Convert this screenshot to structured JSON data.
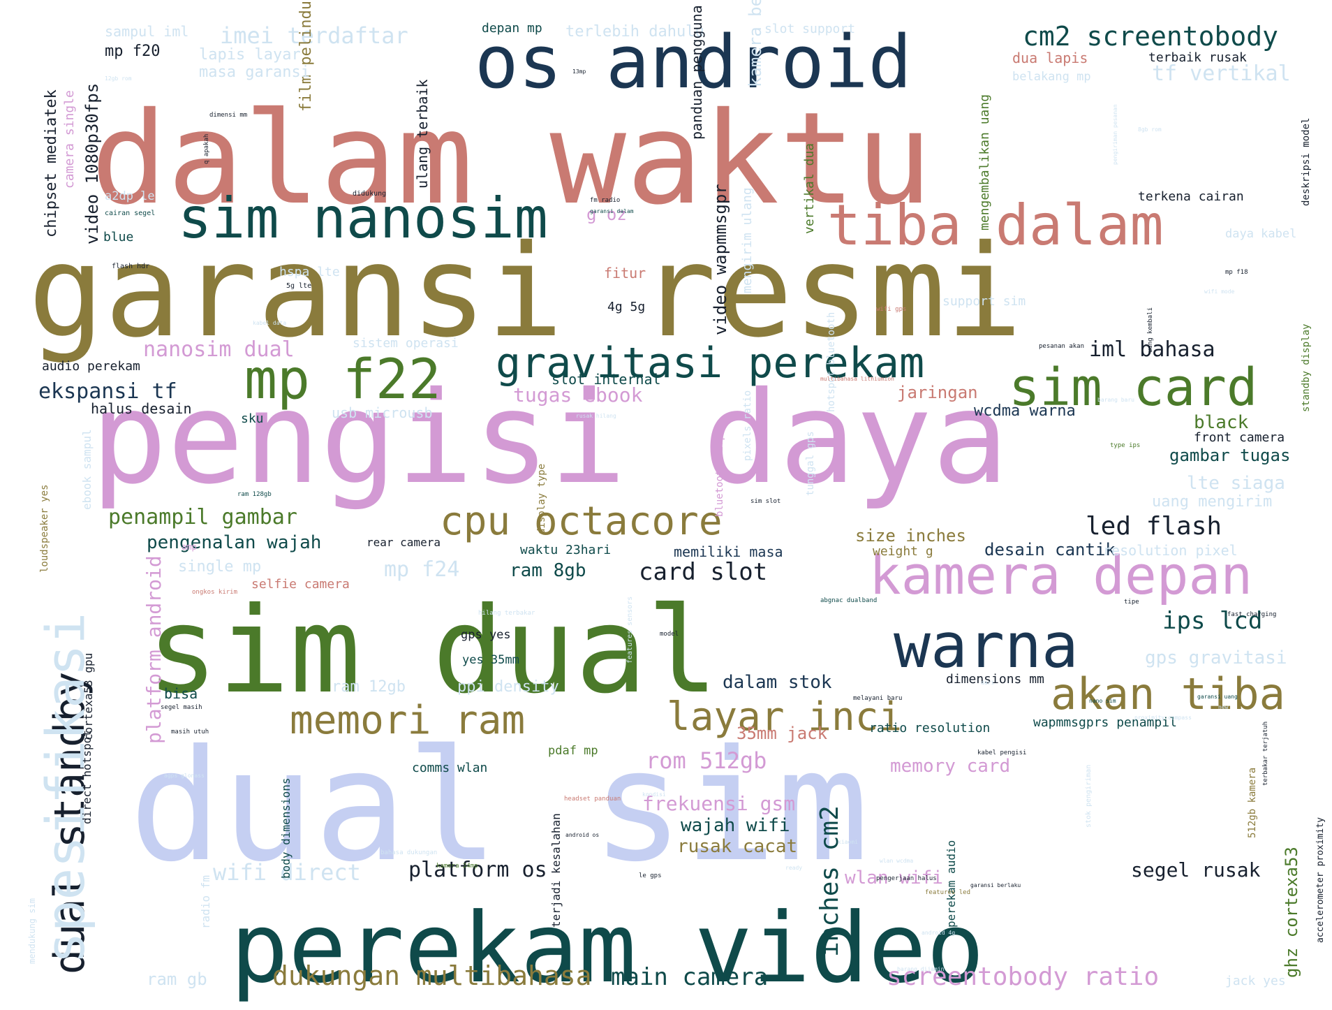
{
  "palette": {
    "rose": "#c97a72",
    "olive": "#8a7b3c",
    "orchid": "#d39ad4",
    "periwinkle": "#c5cff2",
    "deep_teal": "#0f4a4a",
    "navy": "#1b3652",
    "green": "#4b7a2a",
    "ice": "#cfe3f1",
    "dark": "#17202e"
  },
  "words": [
    {
      "text": "dalam waktu",
      "color": "rose"
    },
    {
      "text": "garansi resmi",
      "color": "olive"
    },
    {
      "text": "pengisi daya",
      "color": "orchid"
    },
    {
      "text": "dual sim",
      "color": "periwinkle"
    },
    {
      "text": "sim dual",
      "color": "green"
    },
    {
      "text": "perekam video",
      "color": "deep_teal"
    },
    {
      "text": "os android",
      "color": "navy"
    },
    {
      "text": "sim nanosim",
      "color": "deep_teal"
    },
    {
      "text": "tiba dalam",
      "color": "rose"
    },
    {
      "text": "mp f22",
      "color": "green"
    },
    {
      "text": "gravitasi perekam",
      "color": "deep_teal"
    },
    {
      "text": "sim card",
      "color": "green"
    },
    {
      "text": "warna",
      "color": "navy"
    },
    {
      "text": "kamera depan",
      "color": "orchid"
    },
    {
      "text": "akan tiba",
      "color": "olive"
    },
    {
      "text": "layar inci",
      "color": "olive"
    },
    {
      "text": "memori ram",
      "color": "olive"
    },
    {
      "text": "cpu octacore",
      "color": "olive"
    },
    {
      "text": "dual standby",
      "color": "dark"
    },
    {
      "text": "spesifikasi",
      "color": "ice"
    },
    {
      "text": "cm2 screentobody",
      "color": "deep_teal"
    },
    {
      "text": "imei terdaftar",
      "color": "ice"
    },
    {
      "text": "tf vertikal",
      "color": "ice"
    },
    {
      "text": "dukungan multibahasa",
      "color": "olive"
    },
    {
      "text": "main camera",
      "color": "deep_teal"
    },
    {
      "text": "screentobody ratio",
      "color": "orchid"
    },
    {
      "text": "platform os",
      "color": "dark"
    },
    {
      "text": "wifi direct",
      "color": "ice"
    },
    {
      "text": "segel rusak",
      "color": "dark"
    },
    {
      "text": "wlan wifi",
      "color": "orchid"
    },
    {
      "text": "iml bahasa",
      "color": "dark"
    },
    {
      "text": "led flash",
      "color": "dark"
    },
    {
      "text": "ips lcd",
      "color": "deep_teal"
    },
    {
      "text": "card slot",
      "color": "dark"
    },
    {
      "text": "penampil gambar",
      "color": "green"
    },
    {
      "text": "ekspansi tf",
      "color": "navy"
    },
    {
      "text": "nanosim dual",
      "color": "orchid"
    },
    {
      "text": "pengenalan wajah",
      "color": "deep_teal"
    },
    {
      "text": "mp f24",
      "color": "ice"
    },
    {
      "text": "rom 512gb",
      "color": "orchid"
    },
    {
      "text": "frekuensi gsm",
      "color": "orchid"
    },
    {
      "text": "wajah wifi",
      "color": "deep_teal"
    },
    {
      "text": "rusak cacat",
      "color": "olive"
    },
    {
      "text": "dalam stok",
      "color": "navy"
    },
    {
      "text": "memory card",
      "color": "orchid"
    },
    {
      "text": "35mm jack",
      "color": "rose"
    },
    {
      "text": "ram 8gb",
      "color": "deep_teal"
    },
    {
      "text": "size inches",
      "color": "olive"
    },
    {
      "text": "desain cantik",
      "color": "navy"
    },
    {
      "text": "gps gravitasi",
      "color": "ice"
    },
    {
      "text": "black",
      "color": "green"
    },
    {
      "text": "gambar tugas",
      "color": "deep_teal"
    },
    {
      "text": "lte siaga",
      "color": "ice"
    },
    {
      "text": "uang mengirim",
      "color": "ice"
    },
    {
      "text": "jaringan",
      "color": "rose"
    },
    {
      "text": "wcdma warna",
      "color": "navy"
    },
    {
      "text": "tugas ebook",
      "color": "orchid"
    },
    {
      "text": "slot internal",
      "color": "deep_teal"
    },
    {
      "text": "film pelindung",
      "color": "olive"
    },
    {
      "text": "video 1080p30fps",
      "color": "dark"
    },
    {
      "text": "chipset mediatek",
      "color": "dark"
    },
    {
      "text": "mp f20",
      "color": "dark"
    },
    {
      "text": "lapis layar",
      "color": "ice"
    },
    {
      "text": "masa garansi",
      "color": "ice"
    },
    {
      "text": "sampul iml",
      "color": "ice"
    },
    {
      "text": "depan mp",
      "color": "deep_teal"
    },
    {
      "text": "terlebih dahulu",
      "color": "ice"
    },
    {
      "text": "slot support",
      "color": "ice"
    },
    {
      "text": "dua lapis",
      "color": "rose"
    },
    {
      "text": "terbaik rusak",
      "color": "dark"
    },
    {
      "text": "belakang mp",
      "color": "ice"
    },
    {
      "text": "terkena cairan",
      "color": "dark"
    },
    {
      "text": "daya kabel",
      "color": "ice"
    },
    {
      "text": "support sim",
      "color": "ice"
    },
    {
      "text": "g oz",
      "color": "orchid"
    },
    {
      "text": "fitur",
      "color": "rose"
    },
    {
      "text": "4g 5g",
      "color": "dark"
    },
    {
      "text": "hspa lte",
      "color": "ice"
    },
    {
      "text": "blue",
      "color": "deep_teal"
    },
    {
      "text": "a2dp le",
      "color": "ice"
    },
    {
      "text": "audio perekam",
      "color": "dark"
    },
    {
      "text": "halus desain",
      "color": "dark"
    },
    {
      "text": "sku",
      "color": "deep_teal"
    },
    {
      "text": "usb microusb",
      "color": "ice"
    },
    {
      "text": "sistem operasi",
      "color": "ice"
    },
    {
      "text": "waktu 23hari",
      "color": "deep_teal"
    },
    {
      "text": "memiliki masa",
      "color": "navy"
    },
    {
      "text": "weight g",
      "color": "olive"
    },
    {
      "text": "rear camera",
      "color": "dark"
    },
    {
      "text": "single mp",
      "color": "ice"
    },
    {
      "text": "selfie camera",
      "color": "rose"
    },
    {
      "text": "gps yes",
      "color": "dark"
    },
    {
      "text": "yes 35mm",
      "color": "deep_teal"
    },
    {
      "text": "ram 12gb",
      "color": "ice"
    },
    {
      "text": "ppi density",
      "color": "ice"
    },
    {
      "text": "bisa",
      "color": "deep_teal"
    },
    {
      "text": "pdaf mp",
      "color": "green"
    },
    {
      "text": "comms wlan",
      "color": "deep_teal"
    },
    {
      "text": "dimensions mm",
      "color": "dark"
    },
    {
      "text": "ratio resolution",
      "color": "deep_teal"
    },
    {
      "text": "wapmmsgprs penampil",
      "color": "deep_teal"
    },
    {
      "text": "front camera",
      "color": "dark"
    },
    {
      "text": "resolution pixel",
      "color": "ice"
    },
    {
      "text": "ram gb",
      "color": "ice"
    },
    {
      "text": "jack yes",
      "color": "ice"
    },
    {
      "text": "platform android",
      "color": "orchid"
    },
    {
      "text": "inches cm2",
      "color": "deep_teal"
    },
    {
      "text": "ghz cortexa53",
      "color": "green"
    },
    {
      "text": "video wapmmsgpr",
      "color": "dark"
    },
    {
      "text": "panduan pengguna",
      "color": "dark"
    },
    {
      "text": "kamera belakang",
      "color": "ice"
    },
    {
      "text": "vertikal dua",
      "color": "green"
    },
    {
      "text": "mengembalikan uang",
      "color": "green"
    },
    {
      "text": "ulang terbaik",
      "color": "dark"
    },
    {
      "text": "camera single",
      "color": "orchid"
    },
    {
      "text": "direct hotspot",
      "color": "dark"
    },
    {
      "text": "cortexa53 gpu",
      "color": "dark"
    },
    {
      "text": "perekam audio",
      "color": "deep_teal"
    },
    {
      "text": "terjadi kesalahan",
      "color": "dark"
    },
    {
      "text": "body dimensions",
      "color": "deep_teal"
    },
    {
      "text": "radio fm",
      "color": "ice"
    },
    {
      "text": "loudspeaker yes",
      "color": "olive"
    },
    {
      "text": "ebook sampul",
      "color": "ice"
    },
    {
      "text": "mengirim ulang",
      "color": "ice"
    },
    {
      "text": "deskripsi model",
      "color": "dark"
    },
    {
      "text": "standby display",
      "color": "green"
    },
    {
      "text": "accelerometer proximity",
      "color": "dark"
    },
    {
      "text": "512gb kamera",
      "color": "olive"
    },
    {
      "text": "display type",
      "color": "olive"
    },
    {
      "text": "bluetooth a2dp",
      "color": "orchid"
    },
    {
      "text": "tunggal gps",
      "color": "ice"
    },
    {
      "text": "hotspot bluetooth",
      "color": "ice"
    },
    {
      "text": "pixels ratio",
      "color": "ice"
    },
    {
      "text": "mendukung sim",
      "color": "ice"
    },
    {
      "text": "features sensors",
      "color": "ice"
    },
    {
      "text": "stok pengiriman",
      "color": "ice"
    },
    {
      "text": "q apakah",
      "color": "dark"
    },
    {
      "text": "terbakar terjatuh",
      "color": "dark"
    },
    {
      "text": "uang kembali",
      "color": "dark"
    },
    {
      "text": "pengiriman pesanan",
      "color": "ice"
    },
    {
      "text": "dimensi mm",
      "color": "dark"
    },
    {
      "text": "12gb rom",
      "color": "ice"
    },
    {
      "text": "13mp",
      "color": "dark"
    },
    {
      "text": "didukung",
      "color": "dark"
    },
    {
      "text": "cairan segel",
      "color": "deep_teal"
    },
    {
      "text": "fm radio",
      "color": "dark"
    },
    {
      "text": "garansi dalam",
      "color": "deep_teal"
    },
    {
      "text": "flash hdr",
      "color": "dark"
    },
    {
      "text": "5g lte",
      "color": "dark"
    },
    {
      "text": "kabel data",
      "color": "ice"
    },
    {
      "text": "8gb rom",
      "color": "ice"
    },
    {
      "text": "wifi mode",
      "color": "ice"
    },
    {
      "text": "mp f18",
      "color": "dark"
    },
    {
      "text": "wifi gps",
      "color": "rose"
    },
    {
      "text": "pesanan akan",
      "color": "dark"
    },
    {
      "text": "multibahasa lithiumion",
      "color": "rose"
    },
    {
      "text": "rusak hilang",
      "color": "ice"
    },
    {
      "text": "barang baru",
      "color": "ice"
    },
    {
      "text": "type ips",
      "color": "green"
    },
    {
      "text": "ram 128gb",
      "color": "deep_teal"
    },
    {
      "text": "sim slot",
      "color": "dark"
    },
    {
      "text": "amp",
      "color": "orchid"
    },
    {
      "text": "ongkos kirim",
      "color": "rose"
    },
    {
      "text": "hilang terbakar",
      "color": "ice"
    },
    {
      "text": "abgnac dualband",
      "color": "deep_teal"
    },
    {
      "text": "model",
      "color": "dark"
    },
    {
      "text": "tipe",
      "color": "dark"
    },
    {
      "text": "fast charging",
      "color": "dark"
    },
    {
      "text": "kabel pengisi",
      "color": "dark"
    },
    {
      "text": "proximity compass",
      "color": "ice"
    },
    {
      "text": "melayani baru",
      "color": "dark"
    },
    {
      "text": "new",
      "color": "ice"
    },
    {
      "text": "dari",
      "color": "ice"
    },
    {
      "text": "nano sim",
      "color": "deep_teal"
    },
    {
      "text": "garansi uang",
      "color": "deep_teal"
    },
    {
      "text": "segel masih",
      "color": "dark"
    },
    {
      "text": "masih utuh",
      "color": "dark"
    },
    {
      "text": "agps glonass",
      "color": "ice"
    },
    {
      "text": "kondisi",
      "color": "ice"
    },
    {
      "text": "headset panduan",
      "color": "rose"
    },
    {
      "text": "android os",
      "color": "dark"
    },
    {
      "text": "pengerjaan halus",
      "color": "dark"
    },
    {
      "text": "features led",
      "color": "olive"
    },
    {
      "text": "le gps",
      "color": "dark"
    },
    {
      "text": "kamera 24mp",
      "color": "green"
    },
    {
      "text": "barang dijamin",
      "color": "ice"
    },
    {
      "text": "android 4g",
      "color": "ice"
    },
    {
      "text": "garansi berlaku",
      "color": "dark"
    },
    {
      "text": "ready",
      "color": "ice"
    },
    {
      "text": "xiaomi",
      "color": "ice"
    },
    {
      "text": "wlan wcdma",
      "color": "ice"
    },
    {
      "text": "bahasa dukungan",
      "color": "ice"
    }
  ]
}
